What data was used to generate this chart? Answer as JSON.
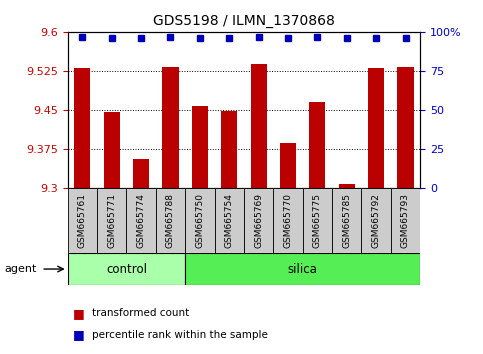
{
  "title": "GDS5198 / ILMN_1370868",
  "samples": [
    "GSM665761",
    "GSM665771",
    "GSM665774",
    "GSM665788",
    "GSM665750",
    "GSM665754",
    "GSM665769",
    "GSM665770",
    "GSM665775",
    "GSM665785",
    "GSM665792",
    "GSM665793"
  ],
  "bar_values": [
    9.53,
    9.445,
    9.355,
    9.533,
    9.458,
    9.447,
    9.538,
    9.385,
    9.465,
    9.307,
    9.53,
    9.533
  ],
  "percentile_values": [
    97,
    96,
    96,
    97,
    96,
    96,
    97,
    96,
    97,
    96,
    96,
    96
  ],
  "ylim_left": [
    9.3,
    9.6
  ],
  "ylim_right": [
    0,
    100
  ],
  "yticks_left": [
    9.3,
    9.375,
    9.45,
    9.525,
    9.6
  ],
  "yticks_right": [
    0,
    25,
    50,
    75,
    100
  ],
  "bar_color": "#BB0000",
  "marker_color": "#0000BB",
  "agent_groups": [
    {
      "label": "control",
      "start": 0,
      "end": 4,
      "color": "#AAFFAA"
    },
    {
      "label": "silica",
      "start": 4,
      "end": 12,
      "color": "#55EE55"
    }
  ],
  "agent_label": "agent",
  "tick_color_left": "#CC0000",
  "tick_color_right": "#0000CC",
  "bar_width": 0.55,
  "legend_red_label": "transformed count",
  "legend_blue_label": "percentile rank within the sample",
  "sample_box_color": "#CCCCCC",
  "grid_linestyle": "dotted",
  "grid_linewidth": 0.7
}
